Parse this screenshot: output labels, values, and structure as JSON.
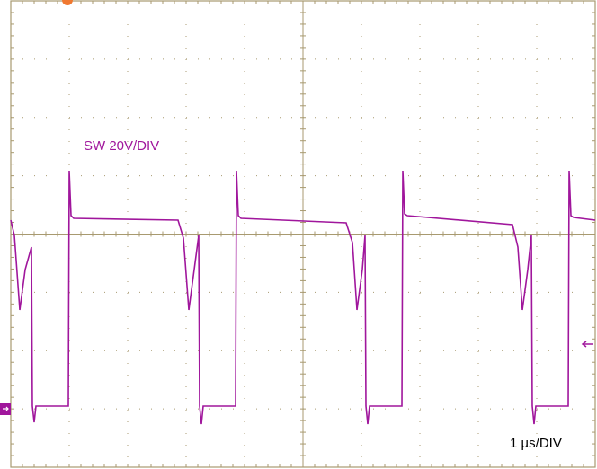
{
  "trace_label": "SW 20V/DIV",
  "timebase": "1 µs/DIV"
}
